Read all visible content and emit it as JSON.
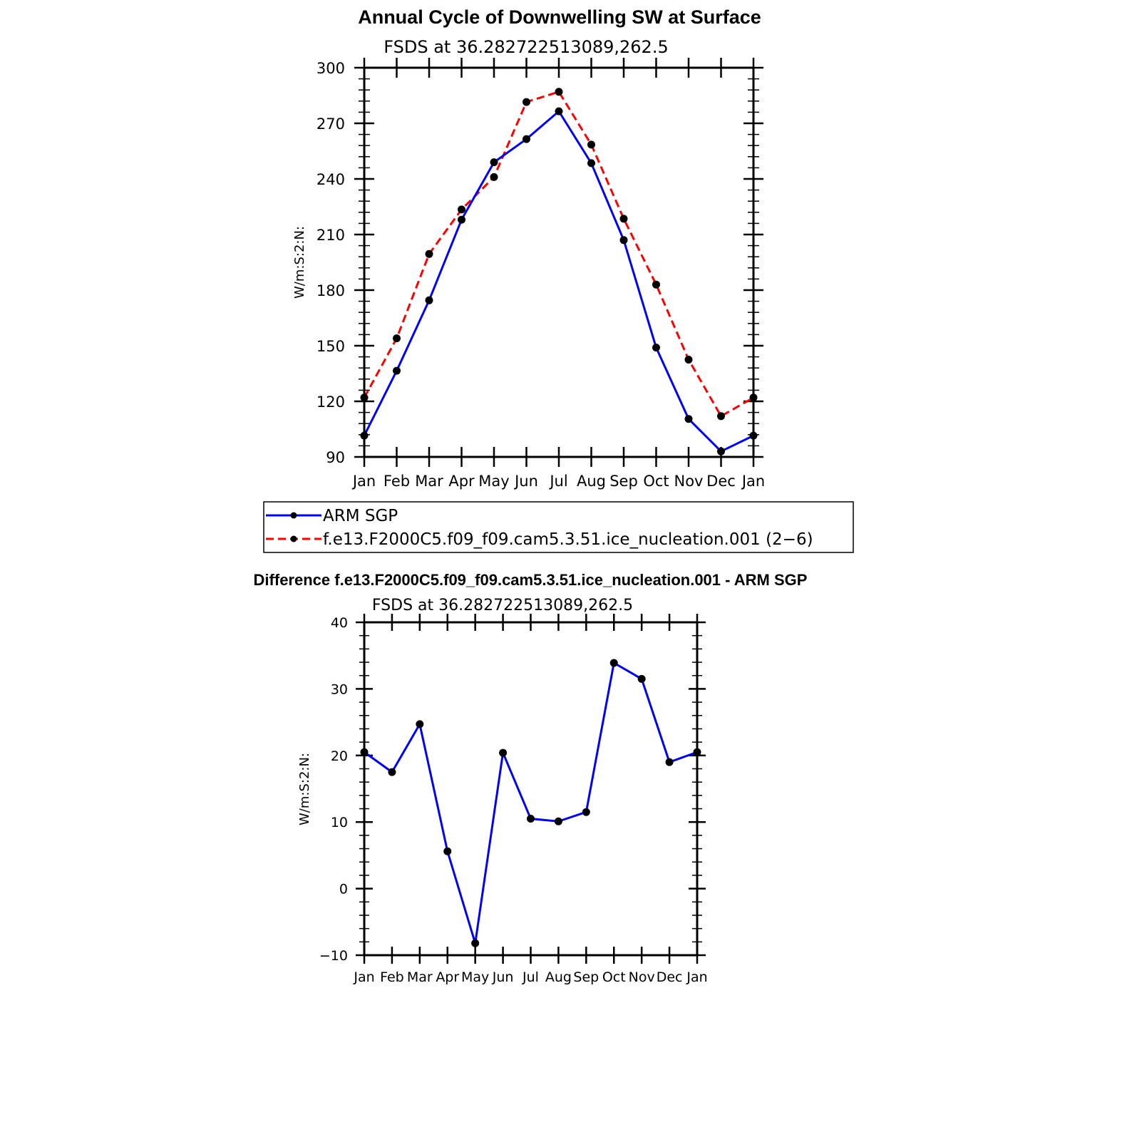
{
  "colors": {
    "arm": "#0000ff",
    "model": "#ff0000",
    "marker": "#000000",
    "axis": "#000000"
  },
  "chart_data": [
    {
      "type": "line",
      "title": "Annual Cycle of Downwelling SW at Surface",
      "subtitle": "FSDS at 36.282722513089,262.5",
      "ylabel": "W/m:S:2:N:",
      "ylim": [
        90,
        300
      ],
      "yticks": [
        "300",
        "270",
        "240",
        "210",
        "180",
        "150",
        "120",
        "90"
      ],
      "ytick_values": [
        300,
        270,
        240,
        210,
        180,
        150,
        120,
        90
      ],
      "categories": [
        "Jan",
        "Feb",
        "Mar",
        "Apr",
        "May",
        "Jun",
        "Jul",
        "Aug",
        "Sep",
        "Oct",
        "Nov",
        "Dec",
        "Jan"
      ],
      "series": [
        {
          "name": "ARM SGP",
          "style": "solid",
          "color": "#0000ff",
          "values": [
            101.5,
            136.5,
            174.5,
            218,
            249,
            261.5,
            276.5,
            248.5,
            207,
            149,
            110.5,
            93,
            101.5
          ]
        },
        {
          "name": "f.e13.F2000C5.f09_f09.cam5.3.51.ice_nucleation.001 (2−6)",
          "style": "dashed",
          "color": "#ff0000",
          "values": [
            122,
            154,
            199.5,
            223.5,
            241,
            281.5,
            287,
            258.5,
            218.5,
            183,
            142.5,
            112,
            122
          ]
        }
      ],
      "legend": [
        "ARM SGP",
        "f.e13.F2000C5.f09_f09.cam5.3.51.ice_nucleation.001 (2−6)"
      ]
    },
    {
      "type": "line",
      "title": "Difference f.e13.F2000C5.f09_f09.cam5.3.51.ice_nucleation.001 - ARM SGP",
      "subtitle": "FSDS at 36.282722513089,262.5",
      "ylabel": "W/m:S:2:N:",
      "ylim": [
        -10,
        40
      ],
      "yticks": [
        "40",
        "30",
        "20",
        "10",
        "0",
        "−10"
      ],
      "ytick_values": [
        40,
        30,
        20,
        10,
        0,
        -10
      ],
      "categories": [
        "Jan",
        "Feb",
        "Mar",
        "Apr",
        "May",
        "Jun",
        "Jul",
        "Aug",
        "Sep",
        "Oct",
        "Nov",
        "Dec",
        "Jan"
      ],
      "series": [
        {
          "style": "solid",
          "color": "#0000ff",
          "values": [
            20.5,
            17.5,
            24.7,
            5.6,
            -8.2,
            20.4,
            10.5,
            10.1,
            11.5,
            33.9,
            31.5,
            19,
            20.5
          ]
        }
      ]
    }
  ]
}
